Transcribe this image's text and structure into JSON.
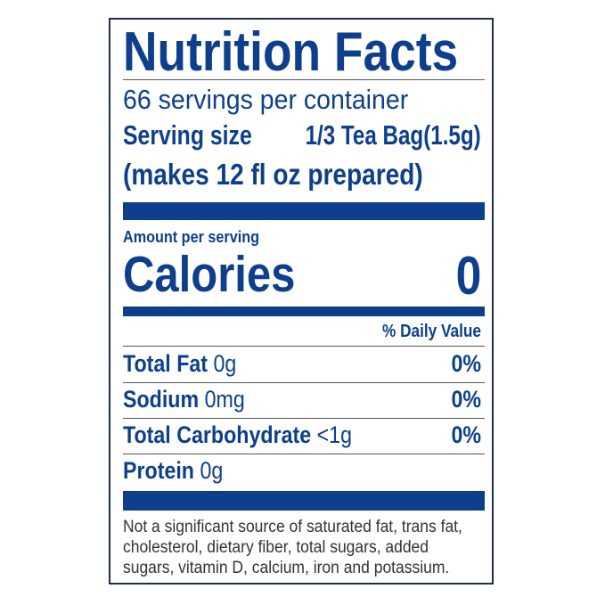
{
  "title": "Nutrition Facts",
  "servings_per_container": "66 servings per container",
  "serving_size_label": "Serving size",
  "serving_size_value": "1/3 Tea Bag(1.5g)",
  "serving_note": "(makes 12 fl oz prepared)",
  "amount_per_serving": "Amount per serving",
  "calories_label": "Calories",
  "calories_value": "0",
  "daily_value_header": "% Daily Value",
  "nutrients": [
    {
      "name": "Total Fat",
      "amount": "0g",
      "dv": "0%"
    },
    {
      "name": "Sodium",
      "amount": "0mg",
      "dv": "0%"
    },
    {
      "name": "Total Carbohydrate",
      "amount": "<1g",
      "dv": "0%"
    },
    {
      "name": "Protein",
      "amount": "0g",
      "dv": ""
    }
  ],
  "footnote": [
    "Not a significant source of saturated fat, trans fat,",
    "cholesterol, dietary fiber, total sugars, added",
    "sugars, vitamin D, calcium, iron and potassium."
  ],
  "colors": {
    "ink": "#0d3f8c",
    "border": "#1f2d4d",
    "footnote": "#333333"
  }
}
